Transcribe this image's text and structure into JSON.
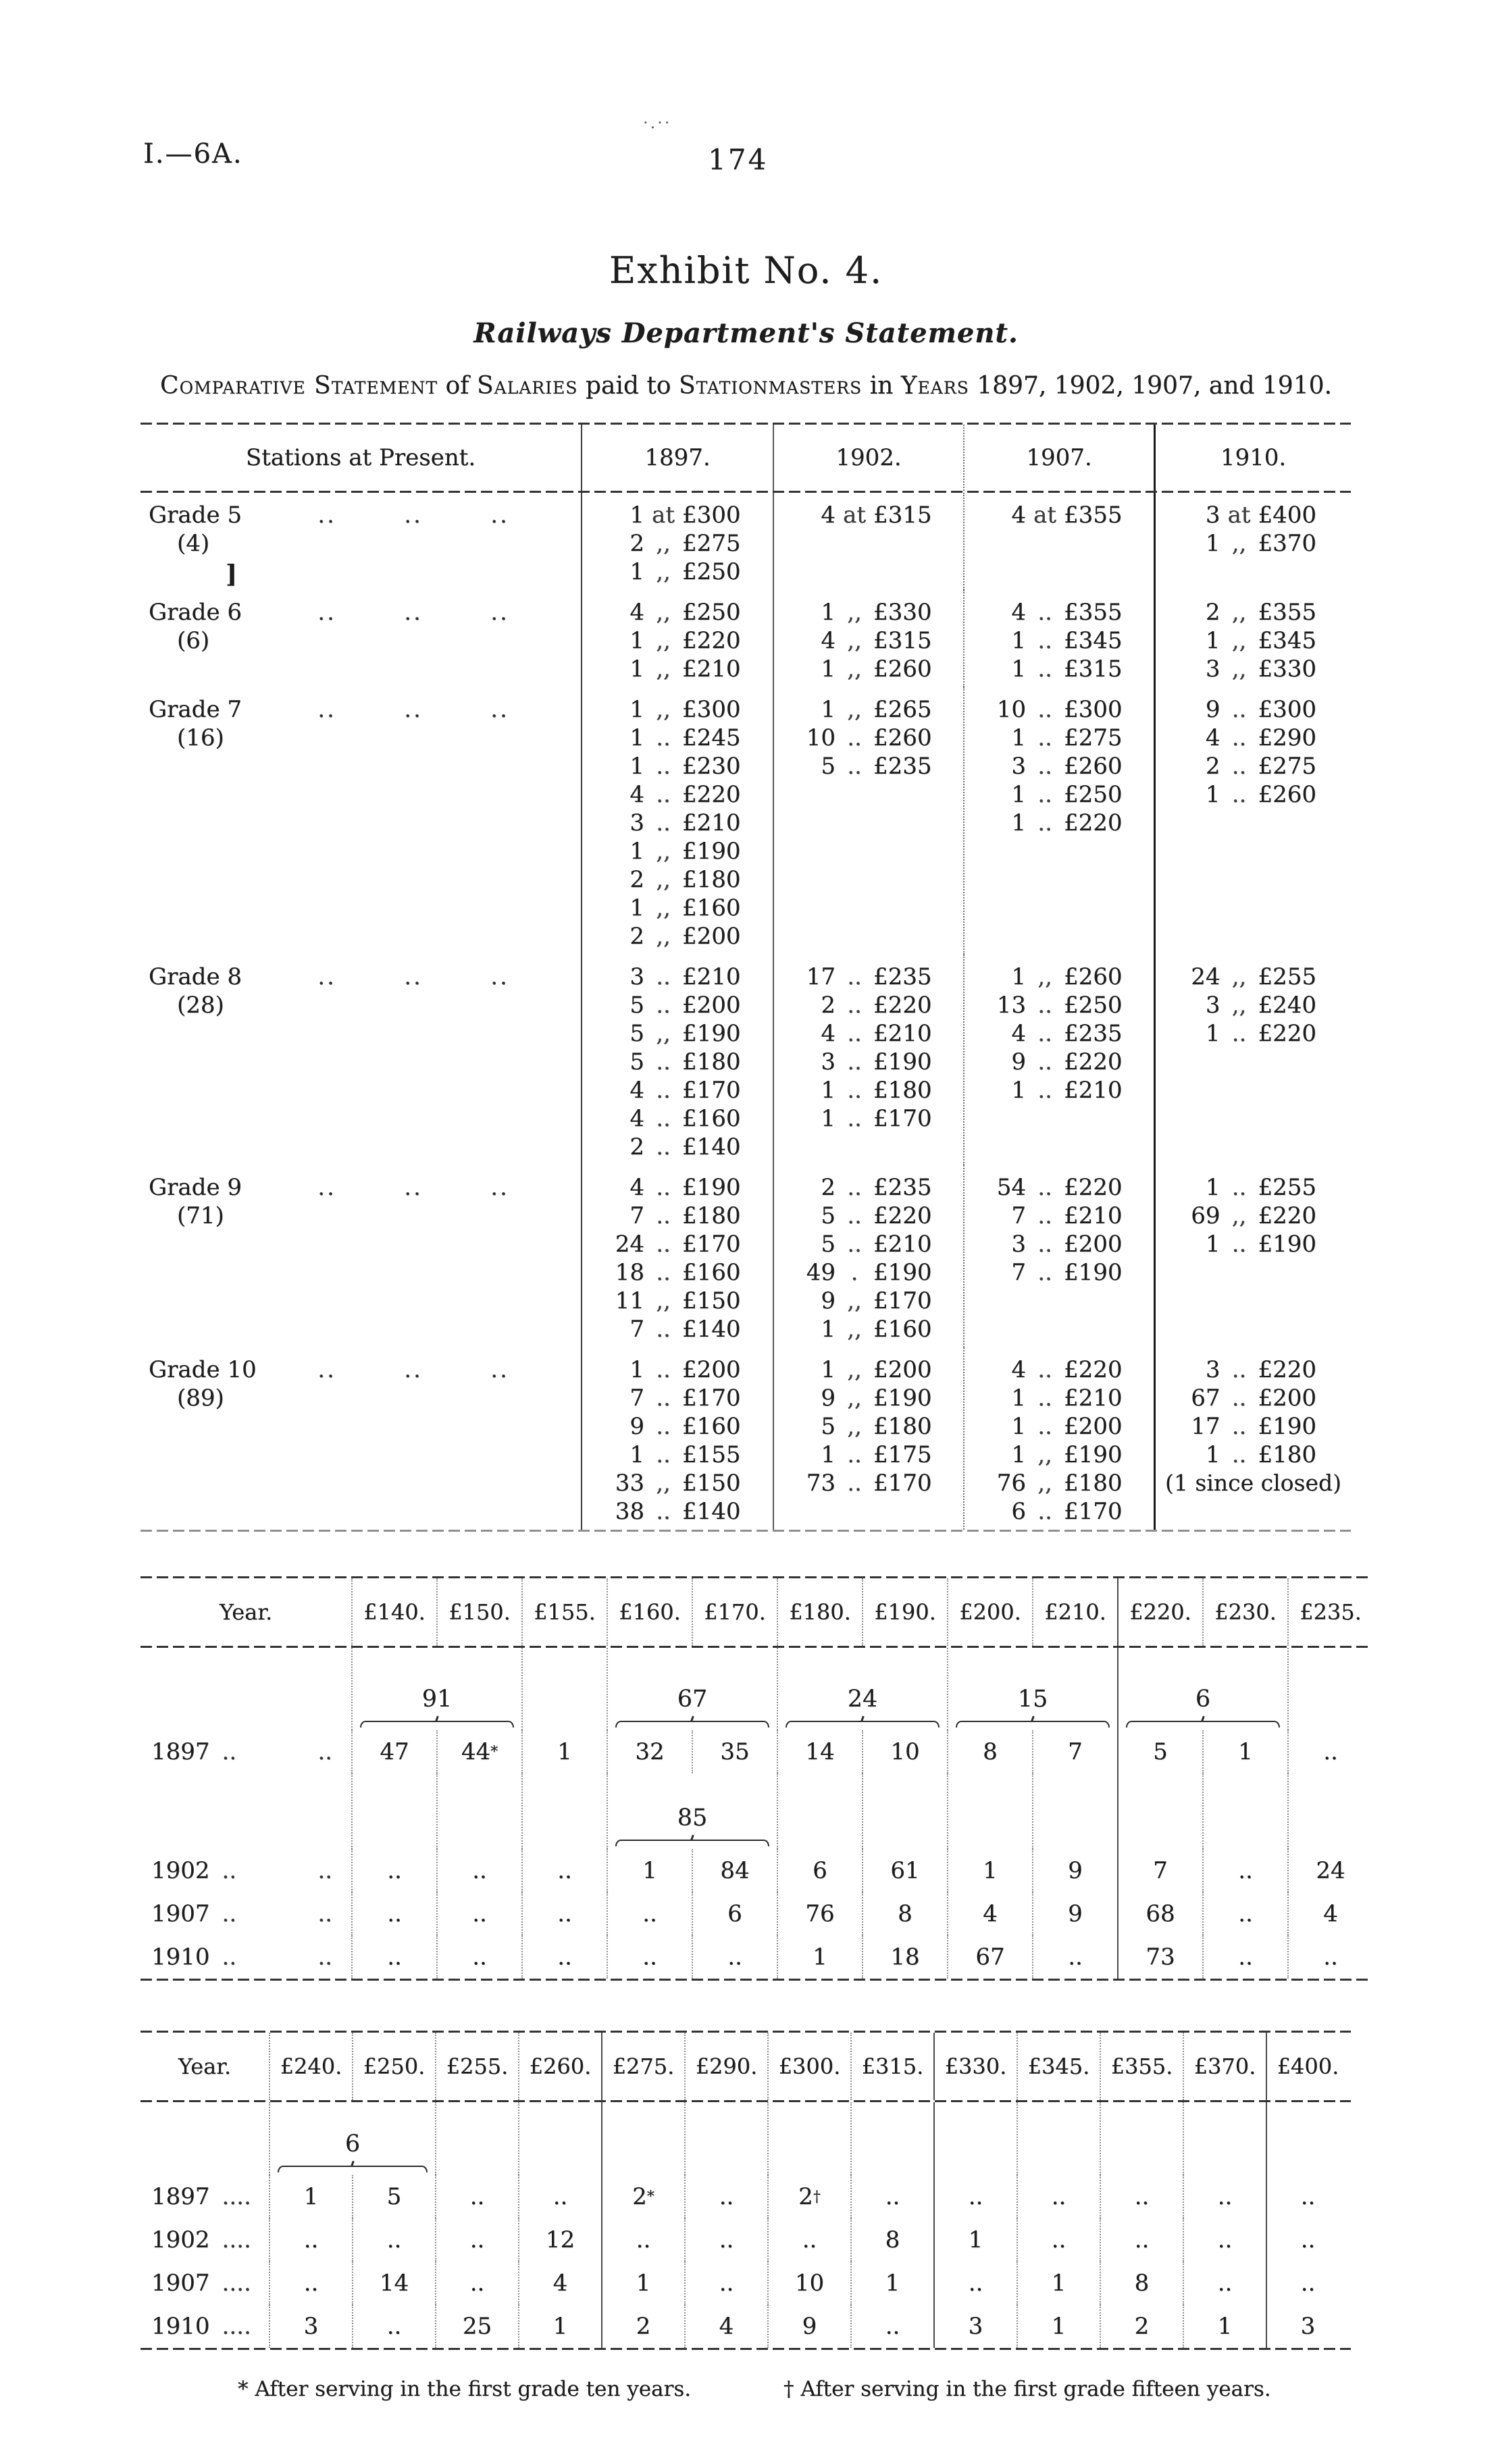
{
  "header": {
    "doc_ref": "I.—6A.",
    "page_number": "174",
    "ink_smudge": "·.··"
  },
  "title": {
    "exhibit": "Exhibit No. 4.",
    "subtitle": "Railways Department's Statement.",
    "statement_segments": [
      {
        "text": "Comparative Statement",
        "smallcaps": true
      },
      {
        "text": " of ",
        "smallcaps": false
      },
      {
        "text": "Salaries",
        "smallcaps": true
      },
      {
        "text": " paid to ",
        "smallcaps": false
      },
      {
        "text": "Stationmasters",
        "smallcaps": true
      },
      {
        "text": " in ",
        "smallcaps": false
      },
      {
        "text": "Years",
        "smallcaps": true
      },
      {
        "text": " 1897, 1902, 1907, and 1910.",
        "smallcaps": false
      }
    ]
  },
  "main_table": {
    "col_headers": [
      "Stations at Present.",
      "1897.",
      "1902.",
      "1907.",
      "1910."
    ],
    "grades": [
      {
        "label": "Grade 5",
        "count": "(4)",
        "stray_mark": "]",
        "y1897": [
          [
            "1",
            "at",
            "£300"
          ],
          [
            "2",
            ",,",
            "£275"
          ],
          [
            "1",
            ",,",
            "£250"
          ]
        ],
        "y1902": [
          [
            "4",
            "at",
            "£315"
          ]
        ],
        "y1907": [
          [
            "4",
            "at",
            "£355"
          ]
        ],
        "y1910": [
          [
            "3",
            "at",
            "£400"
          ],
          [
            "1",
            ",,",
            "£370"
          ]
        ]
      },
      {
        "label": "Grade 6",
        "count": "(6)",
        "y1897": [
          [
            "4",
            ",,",
            "£250"
          ],
          [
            "1",
            ",,",
            "£220"
          ],
          [
            "1",
            ",,",
            "£210"
          ]
        ],
        "y1902": [
          [
            "1",
            ",,",
            "£330"
          ],
          [
            "4",
            ",,",
            "£315"
          ],
          [
            "1",
            ",,",
            "£260"
          ]
        ],
        "y1907": [
          [
            "4",
            "..",
            "£355"
          ],
          [
            "1",
            "..",
            "£345"
          ],
          [
            "1",
            "..",
            "£315"
          ]
        ],
        "y1910": [
          [
            "2",
            ",,",
            "£355"
          ],
          [
            "1",
            ",,",
            "£345"
          ],
          [
            "3",
            ",,",
            "£330"
          ]
        ]
      },
      {
        "label": "Grade 7",
        "count": "(16)",
        "y1897": [
          [
            "1",
            ",,",
            "£300"
          ],
          [
            "1",
            "..",
            "£245"
          ],
          [
            "1",
            "..",
            "£230"
          ],
          [
            "4",
            "..",
            "£220"
          ],
          [
            "3",
            "..",
            "£210"
          ],
          [
            "1",
            ",,",
            "£190"
          ],
          [
            "2",
            ",,",
            "£180"
          ],
          [
            "1",
            ",,",
            "£160"
          ],
          [
            "2",
            ",,",
            "£200"
          ]
        ],
        "y1902": [
          [
            "1",
            ",,",
            "£265"
          ],
          [
            "10",
            "..",
            "£260"
          ],
          [
            "5",
            "..",
            "£235"
          ]
        ],
        "y1907": [
          [
            "10",
            "..",
            "£300"
          ],
          [
            "1",
            "..",
            "£275"
          ],
          [
            "3",
            "..",
            "£260"
          ],
          [
            "1",
            "..",
            "£250"
          ],
          [
            "1",
            "..",
            "£220"
          ]
        ],
        "y1910": [
          [
            "9",
            "..",
            "£300"
          ],
          [
            "4",
            "..",
            "£290"
          ],
          [
            "2",
            "..",
            "£275"
          ],
          [
            "1",
            "..",
            "£260"
          ]
        ]
      },
      {
        "label": "Grade 8",
        "count": "(28)",
        "y1897": [
          [
            "3",
            "..",
            "£210"
          ],
          [
            "5",
            "..",
            "£200"
          ],
          [
            "5",
            ",,",
            "£190"
          ],
          [
            "5",
            "..",
            "£180"
          ],
          [
            "4",
            "..",
            "£170"
          ],
          [
            "4",
            "..",
            "£160"
          ],
          [
            "2",
            "..",
            "£140"
          ]
        ],
        "y1902": [
          [
            "17",
            "..",
            "£235"
          ],
          [
            "2",
            "..",
            "£220"
          ],
          [
            "4",
            "..",
            "£210"
          ],
          [
            "3",
            "..",
            "£190"
          ],
          [
            "1",
            "..",
            "£180"
          ],
          [
            "1",
            "..",
            "£170"
          ]
        ],
        "y1907": [
          [
            "1",
            ",,",
            "£260"
          ],
          [
            "13",
            "..",
            "£250"
          ],
          [
            "4",
            "..",
            "£235"
          ],
          [
            "9",
            "..",
            "£220"
          ],
          [
            "1",
            "..",
            "£210"
          ]
        ],
        "y1910": [
          [
            "24",
            ",,",
            "£255"
          ],
          [
            "3",
            ",,",
            "£240"
          ],
          [
            "1",
            "..",
            "£220"
          ]
        ]
      },
      {
        "label": "Grade 9",
        "count": "(71)",
        "y1897": [
          [
            "4",
            "..",
            "£190"
          ],
          [
            "7",
            "..",
            "£180"
          ],
          [
            "24",
            "..",
            "£170"
          ],
          [
            "18",
            "..",
            "£160"
          ],
          [
            "11",
            ",,",
            "£150"
          ],
          [
            "7",
            "..",
            "£140"
          ]
        ],
        "y1902": [
          [
            "2",
            "..",
            "£235"
          ],
          [
            "5",
            "..",
            "£220"
          ],
          [
            "5",
            "..",
            "£210"
          ],
          [
            "49",
            ".",
            "£190"
          ],
          [
            "9",
            ",,",
            "£170"
          ],
          [
            "1",
            ",,",
            "£160"
          ]
        ],
        "y1907": [
          [
            "54",
            "..",
            "£220"
          ],
          [
            "7",
            "..",
            "£210"
          ],
          [
            "3",
            "..",
            "£200"
          ],
          [
            "7",
            "..",
            "£190"
          ]
        ],
        "y1910": [
          [
            "1",
            "..",
            "£255"
          ],
          [
            "69",
            ",,",
            "£220"
          ],
          [
            "1",
            "..",
            "£190"
          ]
        ]
      },
      {
        "label": "Grade 10",
        "count": "(89)",
        "y1897": [
          [
            "1",
            "..",
            "£200"
          ],
          [
            "7",
            "..",
            "£170"
          ],
          [
            "9",
            "..",
            "£160"
          ],
          [
            "1",
            "..",
            "£155"
          ],
          [
            "33",
            ",,",
            "£150"
          ],
          [
            "38",
            "..",
            "£140"
          ]
        ],
        "y1902": [
          [
            "1",
            ",,",
            "£200"
          ],
          [
            "9",
            ",,",
            "£190"
          ],
          [
            "5",
            ",,",
            "£180"
          ],
          [
            "1",
            "..",
            "£175"
          ],
          [
            "73",
            "..",
            "£170"
          ]
        ],
        "y1907": [
          [
            "4",
            "..",
            "£220"
          ],
          [
            "1",
            "..",
            "£210"
          ],
          [
            "1",
            "..",
            "£200"
          ],
          [
            "1",
            ",,",
            "£190"
          ],
          [
            "76",
            ",,",
            "£180"
          ],
          [
            "6",
            "..",
            "£170"
          ]
        ],
        "y1910": [
          [
            "3",
            "..",
            "£220"
          ],
          [
            "67",
            "..",
            "£200"
          ],
          [
            "17",
            "..",
            "£190"
          ],
          [
            "1",
            "..",
            "£180"
          ],
          [
            "",
            "",
            "(1 since closed)"
          ]
        ]
      }
    ]
  },
  "salary_table_low": {
    "year_header": "Year.",
    "col_headers": [
      "£140.",
      "£150.",
      "£155.",
      "£160.",
      "£170.",
      "£180.",
      "£190.",
      "£200.",
      "£210.",
      "£220.",
      "£230.",
      "£235."
    ],
    "groups": [
      {
        "label": "91",
        "span": [
          0,
          1
        ]
      },
      {
        "label": "67",
        "span": [
          3,
          4
        ]
      },
      {
        "label": "24",
        "span": [
          5,
          6
        ]
      },
      {
        "label": "15",
        "span": [
          7,
          8
        ]
      },
      {
        "label": "6",
        "span": [
          9,
          10
        ]
      }
    ],
    "mid_group": {
      "label": "85",
      "span": [
        3,
        4
      ]
    },
    "rows": [
      {
        "year": "1897",
        "values": [
          "47",
          "44*",
          "1",
          "32",
          "35",
          "14",
          "10",
          "8",
          "7",
          "5",
          "1",
          ".."
        ]
      },
      {
        "year": "1902",
        "values": [
          "..",
          "..",
          "..",
          "1",
          "84",
          "6",
          "61",
          "1",
          "9",
          "7",
          "..",
          "24"
        ]
      },
      {
        "year": "1907",
        "values": [
          "..",
          "..",
          "..",
          "..",
          "6",
          "76",
          "8",
          "4",
          "9",
          "68",
          "..",
          "4"
        ]
      },
      {
        "year": "1910",
        "values": [
          "..",
          "..",
          "..",
          "..",
          "..",
          "1",
          "18",
          "67",
          "..",
          "73",
          "..",
          ".."
        ]
      }
    ]
  },
  "salary_table_high": {
    "year_header": "Year.",
    "col_headers": [
      "£240.",
      "£250.",
      "£255.",
      "£260.",
      "£275.",
      "£290.",
      "£300.",
      "£315.",
      "£330.",
      "£345.",
      "£355.",
      "£370.",
      "£400."
    ],
    "groups": [
      {
        "label": "6",
        "span": [
          0,
          1
        ]
      }
    ],
    "rows": [
      {
        "year": "1897",
        "values": [
          "1",
          "5",
          "..",
          "..",
          "2*",
          "..",
          "2†",
          "..",
          "..",
          "..",
          "..",
          "..",
          ".."
        ]
      },
      {
        "year": "1902",
        "values": [
          "..",
          "..",
          "..",
          "12",
          "..",
          "..",
          "..",
          "8",
          "1",
          "..",
          "..",
          "..",
          ".."
        ]
      },
      {
        "year": "1907",
        "values": [
          "..",
          "14",
          "..",
          "4",
          "1",
          "..",
          "10",
          "1",
          "..",
          "1",
          "8",
          "..",
          ".."
        ]
      },
      {
        "year": "1910",
        "values": [
          "3",
          "..",
          "25",
          "1",
          "2",
          "4",
          "9",
          "..",
          "3",
          "1",
          "2",
          "1",
          "3"
        ]
      }
    ]
  },
  "footnotes": {
    "left": "* After serving in the first grade ten years.",
    "right": "† After serving in the first grade fifteen years."
  }
}
